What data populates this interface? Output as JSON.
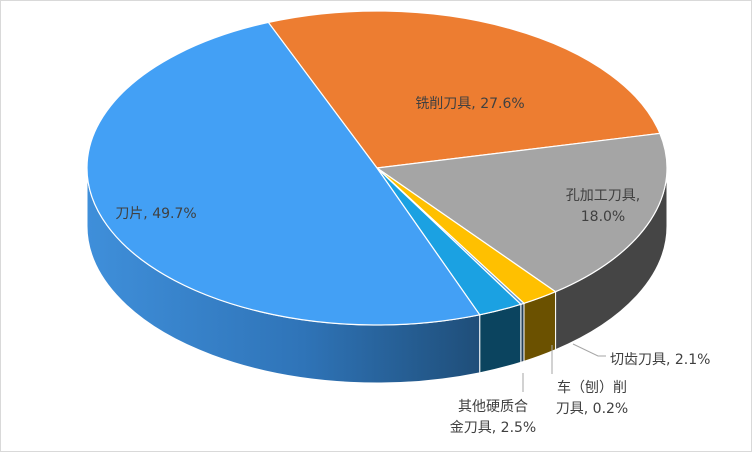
{
  "chart_data": {
    "type": "pie",
    "style": "3d",
    "title": "",
    "series": [
      {
        "values": [
          {
            "label": "铣削刀具",
            "value": 27.6,
            "percent_text": "27.6%",
            "color": "#ED7D31"
          },
          {
            "label": "孔加工刀具",
            "value": 18.0,
            "percent_text": "18.0%",
            "color": "#A5A5A5"
          },
          {
            "label": "切齿刀具",
            "value": 2.1,
            "percent_text": "2.1%",
            "color": "#FFC000"
          },
          {
            "label": "车（刨）削刀具",
            "value": 0.2,
            "percent_text": "0.2%",
            "color": "#5B9BD5"
          },
          {
            "label": "其他硬质合金刀具",
            "value": 2.5,
            "percent_text": "2.5%",
            "color": "#1BA1E2"
          },
          {
            "label": "刀片",
            "value": 49.7,
            "percent_text": "49.7%",
            "color": "#43A0F5"
          }
        ]
      }
    ],
    "labels": {
      "铣削刀具": [
        "铣削刀具, 27.6%"
      ],
      "孔加工刀具": [
        "孔加工刀具,",
        "18.0%"
      ],
      "切齿刀具": [
        "切齿刀具, 2.1%"
      ],
      "车（刨）削刀具": [
        "车（刨）削",
        "刀具, 0.2%"
      ],
      "其他硬质合金刀具": [
        "其他硬质合",
        "金刀具, 2.5%"
      ],
      "刀片": [
        "刀片, 49.7%"
      ]
    },
    "legend": "none",
    "grid": false
  }
}
